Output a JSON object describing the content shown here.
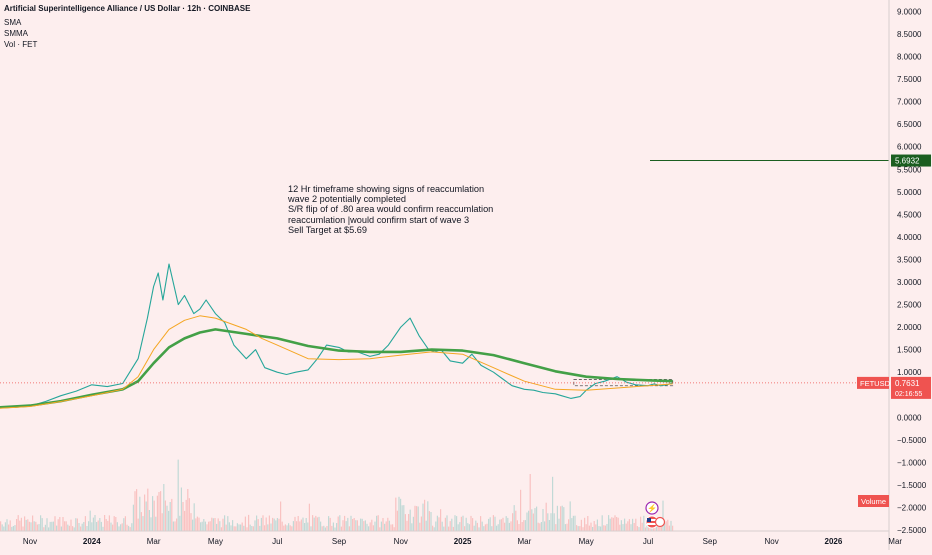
{
  "header": {
    "title": "Artificial Superintelligence Alliance / US Dollar · 12h · COINBASE",
    "indicators": [
      "SMA",
      "SMMA",
      "Vol · FET"
    ]
  },
  "annotation": {
    "lines": [
      "12 Hr timeframe showing signs of reaccumlation",
      "wave 2 potentially completed",
      "S/R flip of of .80 area would confirm reaccumlation",
      "reaccumlation |would confirm start of wave 3",
      "Sell Target at $5.69"
    ]
  },
  "chart_data": {
    "type": "line",
    "x_tick_labels": [
      "Nov",
      "2024",
      "Mar",
      "May",
      "Jul",
      "Sep",
      "Nov",
      "2025",
      "Mar",
      "May",
      "Jul",
      "Sep",
      "Nov",
      "2026",
      "Mar"
    ],
    "y_tick_labels": [
      "9.0000",
      "8.5000",
      "8.0000",
      "7.5000",
      "7.0000",
      "6.5000",
      "6.0000",
      "5.5000",
      "5.0000",
      "4.5000",
      "4.0000",
      "3.5000",
      "3.0000",
      "2.5000",
      "2.0000",
      "1.5000",
      "1.0000",
      "0.5000",
      "0.0000",
      "−0.5000",
      "−1.0000",
      "−1.5000",
      "−2.0000",
      "−2.5000"
    ],
    "y_ticks": [
      9.0,
      8.5,
      8.0,
      7.5,
      7.0,
      6.5,
      6.0,
      5.5,
      5.0,
      4.5,
      4.0,
      3.5,
      3.0,
      2.5,
      2.0,
      1.5,
      1.0,
      0.5,
      0.0,
      -0.5,
      -1.0,
      -1.5,
      -2.0,
      -2.5
    ],
    "ylim": [
      -2.5,
      9.0
    ],
    "x_ticks_month_index": [
      0,
      2,
      4,
      6,
      8,
      10,
      12,
      14,
      16,
      18,
      20,
      22,
      24,
      26,
      28
    ],
    "series": [
      {
        "name": "",
        "color": "#26a69a",
        "x_month_index": [
          -0.5,
          0,
          0.5,
          1,
          1.5,
          2,
          2.5,
          3,
          3.5,
          3.8,
          4,
          4.15,
          4.3,
          4.5,
          4.7,
          4.8,
          5,
          5.3,
          5.5,
          5.7,
          6,
          6.3,
          6.6,
          7,
          7.3,
          7.6,
          8,
          8.3,
          8.6,
          9,
          9.3,
          9.6,
          10,
          10.3,
          10.6,
          11,
          11.3,
          11.6,
          12,
          12.3,
          12.6,
          12.9,
          13.1,
          13.3,
          13.6,
          14,
          14.3,
          14.6,
          15,
          15.3,
          15.6,
          16,
          16.3,
          16.6,
          17,
          17.2,
          17.5,
          17.8,
          18,
          18.3,
          18.6,
          19,
          19.3,
          19.6,
          20,
          20.2,
          20.4,
          20.6,
          20.8
        ],
        "values": [
          0.22,
          0.25,
          0.35,
          0.48,
          0.58,
          0.72,
          0.68,
          0.75,
          1.3,
          2.2,
          2.9,
          3.2,
          2.6,
          3.4,
          2.8,
          2.5,
          2.7,
          2.3,
          2.4,
          2.6,
          2.3,
          2.1,
          1.6,
          1.3,
          1.5,
          1.1,
          1.0,
          0.95,
          1.0,
          1.05,
          1.3,
          1.6,
          1.55,
          1.45,
          1.45,
          1.35,
          1.4,
          1.6,
          2.0,
          2.2,
          1.8,
          1.5,
          1.45,
          1.5,
          1.25,
          1.2,
          1.4,
          1.15,
          1.0,
          0.85,
          0.7,
          0.62,
          0.6,
          0.55,
          0.52,
          0.48,
          0.42,
          0.46,
          0.6,
          0.75,
          0.8,
          0.9,
          0.78,
          0.72,
          0.7,
          0.74,
          0.7,
          0.72,
          0.76,
          0.76
        ]
      },
      {
        "name": "SMA",
        "color": "#43a047",
        "x_month_index": [
          -1,
          0,
          1,
          2,
          3,
          3.5,
          4,
          4.5,
          5,
          5.5,
          6,
          7,
          8,
          9,
          10,
          11,
          12,
          13,
          14,
          15,
          16,
          17,
          18,
          19,
          20,
          20.8
        ],
        "values": [
          0.22,
          0.26,
          0.36,
          0.5,
          0.62,
          0.8,
          1.2,
          1.55,
          1.75,
          1.88,
          1.95,
          1.85,
          1.75,
          1.58,
          1.48,
          1.45,
          1.45,
          1.5,
          1.48,
          1.38,
          1.2,
          1.02,
          0.9,
          0.85,
          0.82,
          0.8
        ]
      },
      {
        "name": "SMMA",
        "color": "#f5a623",
        "x_month_index": [
          -1,
          0,
          1,
          2,
          3,
          3.5,
          4,
          4.5,
          5,
          5.5,
          6,
          7,
          7.5,
          8,
          9,
          10,
          11,
          12,
          13,
          14,
          15,
          15.5,
          16,
          17,
          18,
          19,
          20,
          20.8
        ],
        "values": [
          0.2,
          0.24,
          0.35,
          0.48,
          0.62,
          0.9,
          1.5,
          1.95,
          2.15,
          2.25,
          2.2,
          1.95,
          1.75,
          1.6,
          1.3,
          1.28,
          1.3,
          1.38,
          1.45,
          1.4,
          1.1,
          0.95,
          0.8,
          0.62,
          0.6,
          0.65,
          0.7,
          0.74
        ]
      },
      {
        "name": "Volume",
        "color": "#26a69a",
        "values": []
      }
    ],
    "target_level": 5.6932,
    "target_label": "5.6932",
    "current_price": 0.7631,
    "price_label": "0.7631",
    "symbol_label": "FETUSD",
    "countdown": "02:16:55",
    "volume_label": "Volume",
    "consolidation_range": [
      0.7,
      0.84
    ],
    "colors": {
      "up": "#26a69a",
      "down": "#ef5350",
      "target": "#1b5e20",
      "price_tag": "#ef5350",
      "axis_text": "#131722"
    }
  }
}
